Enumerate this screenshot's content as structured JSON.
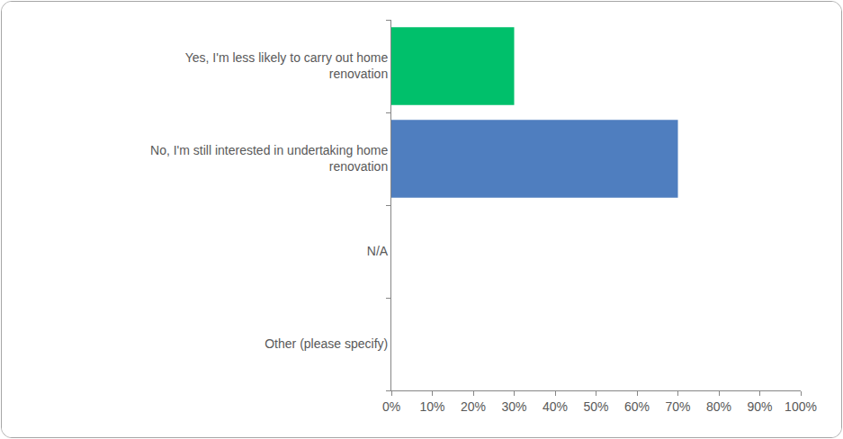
{
  "chart_data": {
    "type": "bar",
    "orientation": "horizontal",
    "categories": [
      "Yes, I'm less likely to carry out home renovation",
      "No, I'm still interested in undertaking home renovation",
      "N/A",
      "Other (please specify)"
    ],
    "values": [
      30,
      70,
      0,
      0
    ],
    "colors": [
      "#00c06b",
      "#4f7ebf",
      "#4f7ebf",
      "#4f7ebf"
    ],
    "xlim": [
      0,
      100
    ],
    "xticks": [
      {
        "value": 0,
        "label": "0%"
      },
      {
        "value": 10,
        "label": "10%"
      },
      {
        "value": 20,
        "label": "20%"
      },
      {
        "value": 30,
        "label": "30%"
      },
      {
        "value": 40,
        "label": "40%"
      },
      {
        "value": 50,
        "label": "50%"
      },
      {
        "value": 60,
        "label": "60%"
      },
      {
        "value": 70,
        "label": "70%"
      },
      {
        "value": 80,
        "label": "80%"
      },
      {
        "value": 90,
        "label": "90%"
      },
      {
        "value": 100,
        "label": "100%"
      }
    ],
    "grid": false
  }
}
